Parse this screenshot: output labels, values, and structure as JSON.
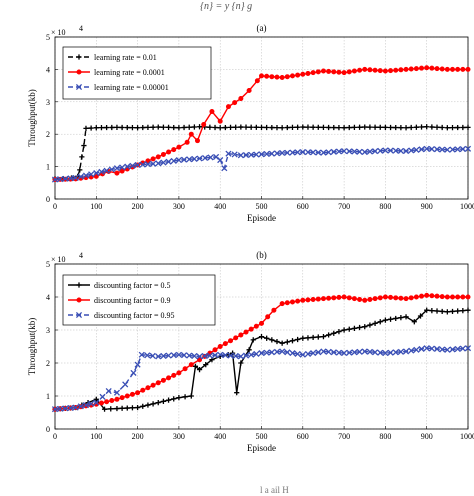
{
  "caption_top": "{n} = y {n} g",
  "caption_bottom": "l a ail H",
  "chart_data": [
    {
      "type": "line",
      "title": "(a)",
      "xlabel": "Episode",
      "ylabel": "Throughput(kb)",
      "exponent_label": "× 10",
      "exponent_power": "4",
      "xlim": [
        0,
        1000
      ],
      "ylim": [
        0,
        50000
      ],
      "xticks": [
        "0",
        "100",
        "200",
        "300",
        "400",
        "500",
        "600",
        "700",
        "800",
        "900",
        "1000"
      ],
      "yticks": [
        "0",
        "1",
        "2",
        "3",
        "4",
        "5"
      ],
      "grid": true,
      "legend_position": "top-left",
      "series": [
        {
          "name": "learning rate = 0.01",
          "color": "#000000",
          "marker": "plus",
          "dash": "dashed",
          "points": [
            [
              0,
              6200
            ],
            [
              20,
              6300
            ],
            [
              40,
              6500
            ],
            [
              55,
              7000
            ],
            [
              60,
              9000
            ],
            [
              65,
              13000
            ],
            [
              70,
              16500
            ],
            [
              75,
              21800
            ],
            [
              100,
              22000
            ],
            [
              150,
              22100
            ],
            [
              200,
              22000
            ],
            [
              250,
              22200
            ],
            [
              300,
              22000
            ],
            [
              350,
              22300
            ],
            [
              400,
              22000
            ],
            [
              450,
              22200
            ],
            [
              500,
              22100
            ],
            [
              550,
              22000
            ],
            [
              600,
              22200
            ],
            [
              650,
              22100
            ],
            [
              700,
              22000
            ],
            [
              750,
              22200
            ],
            [
              800,
              22100
            ],
            [
              850,
              22000
            ],
            [
              900,
              22300
            ],
            [
              950,
              22000
            ],
            [
              1000,
              22100
            ]
          ]
        },
        {
          "name": "learning rate = 0.0001",
          "color": "#ff0000",
          "marker": "circle",
          "dash": "solid",
          "points": [
            [
              0,
              6000
            ],
            [
              50,
              6200
            ],
            [
              100,
              7000
            ],
            [
              130,
              8500
            ],
            [
              150,
              8000
            ],
            [
              200,
              10500
            ],
            [
              250,
              13000
            ],
            [
              300,
              16000
            ],
            [
              320,
              17500
            ],
            [
              330,
              20000
            ],
            [
              345,
              18000
            ],
            [
              360,
              23000
            ],
            [
              380,
              27000
            ],
            [
              400,
              24000
            ],
            [
              420,
              28500
            ],
            [
              450,
              31000
            ],
            [
              470,
              33500
            ],
            [
              490,
              36500
            ],
            [
              500,
              38000
            ],
            [
              550,
              37500
            ],
            [
              600,
              38500
            ],
            [
              650,
              39500
            ],
            [
              700,
              39000
            ],
            [
              750,
              40000
            ],
            [
              800,
              39500
            ],
            [
              850,
              40000
            ],
            [
              900,
              40500
            ],
            [
              950,
              40000
            ],
            [
              1000,
              40000
            ]
          ]
        },
        {
          "name": "learning rate = 0.00001",
          "color": "#3a4fb5",
          "marker": "x",
          "dash": "dashed",
          "points": [
            [
              0,
              6000
            ],
            [
              50,
              6500
            ],
            [
              100,
              8000
            ],
            [
              150,
              9500
            ],
            [
              200,
              10500
            ],
            [
              250,
              11000
            ],
            [
              300,
              12000
            ],
            [
              350,
              12500
            ],
            [
              390,
              13000
            ],
            [
              400,
              12000
            ],
            [
              410,
              9500
            ],
            [
              420,
              14000
            ],
            [
              450,
              13500
            ],
            [
              500,
              13800
            ],
            [
              550,
              14200
            ],
            [
              600,
              14500
            ],
            [
              650,
              14300
            ],
            [
              700,
              14800
            ],
            [
              750,
              14500
            ],
            [
              800,
              15000
            ],
            [
              850,
              14800
            ],
            [
              900,
              15500
            ],
            [
              950,
              15200
            ],
            [
              1000,
              15500
            ]
          ]
        }
      ]
    },
    {
      "type": "line",
      "title": "(b)",
      "xlabel": "Episode",
      "ylabel": "Throughput(kb)",
      "exponent_label": "× 10",
      "exponent_power": "4",
      "xlim": [
        0,
        1000
      ],
      "ylim": [
        0,
        50000
      ],
      "xticks": [
        "0",
        "100",
        "200",
        "300",
        "400",
        "500",
        "600",
        "700",
        "800",
        "900",
        "1000"
      ],
      "yticks": [
        "0",
        "1",
        "2",
        "3",
        "4",
        "5"
      ],
      "grid": true,
      "legend_position": "top-left",
      "series": [
        {
          "name": "discounting factor = 0.5",
          "color": "#000000",
          "marker": "plus",
          "dash": "solid",
          "points": [
            [
              0,
              6000
            ],
            [
              50,
              6500
            ],
            [
              80,
              8000
            ],
            [
              100,
              9000
            ],
            [
              120,
              6000
            ],
            [
              150,
              6200
            ],
            [
              200,
              6500
            ],
            [
              250,
              8000
            ],
            [
              300,
              9500
            ],
            [
              330,
              10000
            ],
            [
              340,
              19000
            ],
            [
              350,
              18000
            ],
            [
              380,
              21000
            ],
            [
              400,
              22000
            ],
            [
              420,
              22500
            ],
            [
              430,
              23000
            ],
            [
              440,
              11000
            ],
            [
              450,
              20000
            ],
            [
              470,
              24000
            ],
            [
              480,
              27000
            ],
            [
              500,
              28000
            ],
            [
              550,
              26000
            ],
            [
              600,
              27500
            ],
            [
              650,
              28000
            ],
            [
              700,
              30000
            ],
            [
              750,
              31000
            ],
            [
              800,
              33000
            ],
            [
              850,
              34000
            ],
            [
              870,
              32500
            ],
            [
              900,
              36000
            ],
            [
              950,
              35500
            ],
            [
              1000,
              36000
            ]
          ]
        },
        {
          "name": "discounting factor = 0.9",
          "color": "#ff0000",
          "marker": "circle",
          "dash": "solid",
          "points": [
            [
              0,
              6000
            ],
            [
              50,
              6500
            ],
            [
              100,
              7500
            ],
            [
              150,
              9000
            ],
            [
              200,
              11000
            ],
            [
              250,
              14000
            ],
            [
              300,
              17000
            ],
            [
              330,
              19500
            ],
            [
              350,
              21000
            ],
            [
              400,
              25000
            ],
            [
              450,
              28500
            ],
            [
              500,
              32000
            ],
            [
              530,
              36000
            ],
            [
              550,
              38000
            ],
            [
              600,
              39000
            ],
            [
              650,
              39500
            ],
            [
              700,
              40000
            ],
            [
              750,
              39000
            ],
            [
              800,
              40000
            ],
            [
              850,
              39500
            ],
            [
              900,
              40500
            ],
            [
              950,
              40000
            ],
            [
              1000,
              40000
            ]
          ]
        },
        {
          "name": "discounting factor = 0.95",
          "color": "#3a4fb5",
          "marker": "x",
          "dash": "dashed",
          "points": [
            [
              0,
              6000
            ],
            [
              50,
              6500
            ],
            [
              100,
              8000
            ],
            [
              130,
              11500
            ],
            [
              150,
              11000
            ],
            [
              170,
              13500
            ],
            [
              190,
              17000
            ],
            [
              200,
              19500
            ],
            [
              210,
              22500
            ],
            [
              250,
              22000
            ],
            [
              300,
              22500
            ],
            [
              350,
              22000
            ],
            [
              400,
              22500
            ],
            [
              450,
              22000
            ],
            [
              500,
              23000
            ],
            [
              550,
              23500
            ],
            [
              600,
              22500
            ],
            [
              650,
              23500
            ],
            [
              700,
              23000
            ],
            [
              750,
              23500
            ],
            [
              800,
              23000
            ],
            [
              850,
              23500
            ],
            [
              900,
              24500
            ],
            [
              950,
              24000
            ],
            [
              1000,
              24500
            ]
          ]
        }
      ]
    }
  ]
}
